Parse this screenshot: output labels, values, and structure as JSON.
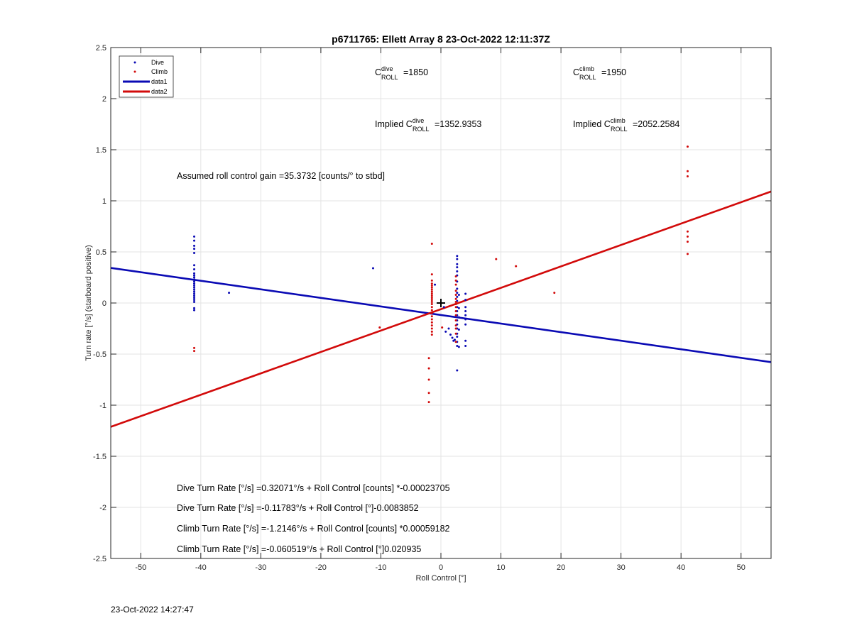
{
  "chart_data": {
    "type": "scatter",
    "title": "p6711765: Ellett Array 8 23-Oct-2022 12:11:37Z",
    "xlabel": "Roll Control [°]",
    "ylabel": "Turn rate [°/s] (starboard positive)",
    "xlim": [
      -55,
      55
    ],
    "ylim": [
      -2.5,
      2.5
    ],
    "xticks": [
      -50,
      -40,
      -30,
      -20,
      -10,
      0,
      10,
      20,
      30,
      40,
      50
    ],
    "yticks": [
      -2.5,
      -2,
      -1.5,
      -1,
      -0.5,
      0,
      0.5,
      1,
      1.5,
      2,
      2.5
    ],
    "grid": true,
    "legend_position": "top-left",
    "center_marker": {
      "x": 0,
      "y": 0,
      "symbol": "+"
    },
    "series": [
      {
        "name": "Dive",
        "kind": "points",
        "color": "#0a0ab4",
        "points": [
          [
            -41.1,
            0.65
          ],
          [
            -41.1,
            0.61
          ],
          [
            -41.1,
            0.56
          ],
          [
            -41.1,
            0.53
          ],
          [
            -41.1,
            0.49
          ],
          [
            -41.1,
            0.37
          ],
          [
            -41.1,
            0.33
          ],
          [
            -41.1,
            0.29
          ],
          [
            -41.1,
            0.27
          ],
          [
            -41.1,
            0.25
          ],
          [
            -41.1,
            0.23
          ],
          [
            -41.1,
            0.21
          ],
          [
            -41.1,
            0.19
          ],
          [
            -41.1,
            0.17
          ],
          [
            -41.1,
            0.15
          ],
          [
            -41.1,
            0.13
          ],
          [
            -41.1,
            0.11
          ],
          [
            -41.1,
            0.09
          ],
          [
            -41.1,
            0.07
          ],
          [
            -41.1,
            0.05
          ],
          [
            -41.1,
            0.03
          ],
          [
            -41.1,
            0.01
          ],
          [
            -41.1,
            -0.05
          ],
          [
            -41.1,
            -0.07
          ],
          [
            -35.3,
            0.1
          ],
          [
            -11.3,
            0.34
          ],
          [
            -1.0,
            0.18
          ],
          [
            0.5,
            -0.04
          ],
          [
            0.8,
            -0.28
          ],
          [
            1.3,
            -0.25
          ],
          [
            1.6,
            -0.31
          ],
          [
            1.9,
            -0.34
          ],
          [
            2.1,
            -0.37
          ],
          [
            2.3,
            -0.36
          ],
          [
            2.7,
            0.46
          ],
          [
            2.7,
            0.43
          ],
          [
            2.7,
            0.38
          ],
          [
            2.7,
            0.35
          ],
          [
            2.7,
            0.31
          ],
          [
            2.7,
            0.27
          ],
          [
            2.7,
            0.21
          ],
          [
            2.7,
            0.14
          ],
          [
            2.7,
            0.1
          ],
          [
            2.7,
            0.06
          ],
          [
            2.7,
            0.02
          ],
          [
            2.7,
            -0.04
          ],
          [
            2.7,
            -0.08
          ],
          [
            2.7,
            -0.12
          ],
          [
            2.7,
            -0.17
          ],
          [
            2.7,
            -0.21
          ],
          [
            2.7,
            -0.25
          ],
          [
            2.7,
            -0.3
          ],
          [
            2.7,
            -0.33
          ],
          [
            2.7,
            -0.38
          ],
          [
            2.7,
            -0.42
          ],
          [
            2.7,
            -0.66
          ],
          [
            3.0,
            0.08
          ],
          [
            3.0,
            -0.05
          ],
          [
            3.0,
            -0.14
          ],
          [
            3.0,
            -0.26
          ],
          [
            3.0,
            -0.43
          ],
          [
            4.1,
            0.09
          ],
          [
            4.1,
            0.03
          ],
          [
            4.1,
            -0.04
          ],
          [
            4.1,
            -0.08
          ],
          [
            4.1,
            -0.12
          ],
          [
            4.1,
            -0.16
          ],
          [
            4.1,
            -0.21
          ],
          [
            4.1,
            -0.37
          ],
          [
            4.1,
            -0.42
          ]
        ]
      },
      {
        "name": "Climb",
        "kind": "points",
        "color": "#d20a0a",
        "points": [
          [
            -41.1,
            -0.44
          ],
          [
            -41.1,
            -0.47
          ],
          [
            -10.2,
            -0.24
          ],
          [
            -2.0,
            -0.54
          ],
          [
            -2.0,
            -0.64
          ],
          [
            -2.0,
            -0.75
          ],
          [
            -2.0,
            -0.88
          ],
          [
            -2.0,
            -0.97
          ],
          [
            -1.5,
            0.58
          ],
          [
            -1.5,
            0.28
          ],
          [
            -1.5,
            0.22
          ],
          [
            -1.5,
            0.19
          ],
          [
            -1.5,
            0.17
          ],
          [
            -1.5,
            0.15
          ],
          [
            -1.5,
            0.13
          ],
          [
            -1.5,
            0.11
          ],
          [
            -1.5,
            0.09
          ],
          [
            -1.5,
            0.07
          ],
          [
            -1.5,
            0.05
          ],
          [
            -1.5,
            0.03
          ],
          [
            -1.5,
            0.01
          ],
          [
            -1.5,
            -0.01
          ],
          [
            -1.5,
            -0.04
          ],
          [
            -1.5,
            -0.07
          ],
          [
            -1.5,
            -0.1
          ],
          [
            -1.5,
            -0.13
          ],
          [
            -1.5,
            -0.16
          ],
          [
            -1.5,
            -0.19
          ],
          [
            -1.5,
            -0.22
          ],
          [
            -1.5,
            -0.25
          ],
          [
            -1.5,
            -0.28
          ],
          [
            -1.5,
            -0.31
          ],
          [
            0.2,
            -0.24
          ],
          [
            2.5,
            0.26
          ],
          [
            2.5,
            0.22
          ],
          [
            2.5,
            0.18
          ],
          [
            2.5,
            0.12
          ],
          [
            2.5,
            0.08
          ],
          [
            2.5,
            0.04
          ],
          [
            2.5,
            0.01
          ],
          [
            2.5,
            -0.01
          ],
          [
            2.5,
            -0.04
          ],
          [
            2.5,
            -0.08
          ],
          [
            2.5,
            -0.12
          ],
          [
            2.5,
            -0.17
          ],
          [
            2.5,
            -0.22
          ],
          [
            2.5,
            -0.25
          ],
          [
            2.5,
            -0.3
          ],
          [
            2.5,
            -0.38
          ],
          [
            9.2,
            0.43
          ],
          [
            12.5,
            0.36
          ],
          [
            18.9,
            0.1
          ],
          [
            41.1,
            1.53
          ],
          [
            41.1,
            1.29
          ],
          [
            41.1,
            1.24
          ],
          [
            41.1,
            0.7
          ],
          [
            41.1,
            0.65
          ],
          [
            41.1,
            0.6
          ],
          [
            41.1,
            0.48
          ]
        ]
      },
      {
        "name": "data1",
        "kind": "line",
        "color": "#0a0ab4",
        "x": [
          -55,
          55
        ],
        "y": [
          0.3434,
          -0.5788
        ]
      },
      {
        "name": "data2",
        "kind": "line",
        "color": "#d20a0a",
        "x": [
          -55,
          55
        ],
        "y": [
          -1.212,
          1.0909
        ]
      }
    ]
  },
  "legend": [
    "Dive",
    "Climb",
    "data1",
    "data2"
  ],
  "annotations": {
    "c_dive_base": "C",
    "c_dive_sup": "dive",
    "c_dive_sub": "ROLL",
    "c_dive_val": "=1850",
    "c_climb_base": "C",
    "c_climb_sup": "climb",
    "c_climb_sub": "ROLL",
    "c_climb_val": "=1950",
    "impl_dive_prefix": "Implied C",
    "impl_dive_sup": "dive",
    "impl_dive_sub": "ROLL",
    "impl_dive_val": "=1352.9353",
    "impl_climb_prefix": "Implied C",
    "impl_climb_sup": "climb",
    "impl_climb_sub": "ROLL",
    "impl_climb_val": "=2052.2584",
    "gain": "Assumed roll control gain =35.3732 [counts/° to stbd]",
    "eq1": "Dive Turn Rate [°/s] =0.32071°/s + Roll Control [counts] *-0.00023705",
    "eq2": "Dive Turn Rate [°/s] =-0.11783°/s + Roll Control [°]-0.0083852",
    "eq3": "Climb Turn Rate [°/s] =-1.2146°/s + Roll Control [counts] *0.00059182",
    "eq4": "Climb Turn Rate [°/s] =-0.060519°/s + Roll Control [°]0.020935"
  },
  "footer_timestamp": "23-Oct-2022 14:27:47"
}
